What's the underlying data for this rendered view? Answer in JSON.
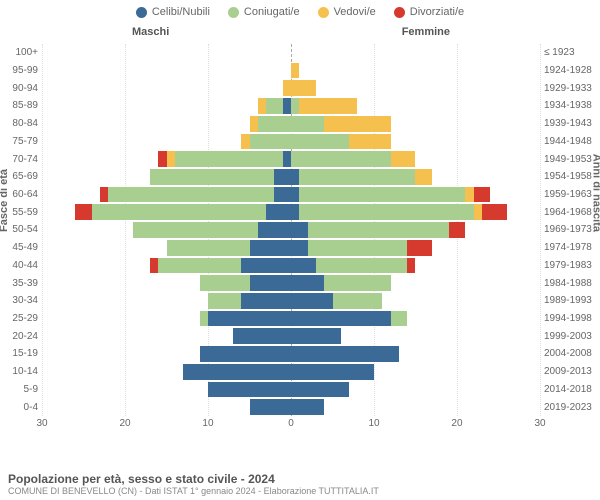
{
  "legend": [
    {
      "label": "Celibi/Nubili",
      "color": "#3b6a96"
    },
    {
      "label": "Coniugati/e",
      "color": "#a8cf8f"
    },
    {
      "label": "Vedovi/e",
      "color": "#f5c04e"
    },
    {
      "label": "Divorziati/e",
      "color": "#d63a2e"
    }
  ],
  "headers": {
    "male": "Maschi",
    "female": "Femmine"
  },
  "yaxis_left": "Fasce di età",
  "yaxis_right": "Anni di nascita",
  "xaxis": {
    "min": -30,
    "max": 30,
    "ticks": [
      30,
      20,
      10,
      0,
      10,
      20,
      30
    ],
    "positions": [
      0,
      16.67,
      33.33,
      50,
      66.67,
      83.33,
      100
    ]
  },
  "title": "Popolazione per età, sesso e stato civile - 2024",
  "subtitle": "COMUNE DI BENEVELLO (CN) - Dati ISTAT 1° gennaio 2024 - Elaborazione TUTTITALIA.IT",
  "background_color": "#ffffff",
  "grid_color": "#dddddd",
  "centerline_color": "#aaaaaa",
  "scale_max": 30,
  "rows": [
    {
      "age": "100+",
      "year": "≤ 1923",
      "m": {
        "c": 0,
        "m": 0,
        "w": 0,
        "d": 0
      },
      "f": {
        "c": 0,
        "m": 0,
        "w": 0,
        "d": 0
      }
    },
    {
      "age": "95-99",
      "year": "1924-1928",
      "m": {
        "c": 0,
        "m": 0,
        "w": 0,
        "d": 0
      },
      "f": {
        "c": 0,
        "m": 0,
        "w": 1,
        "d": 0
      }
    },
    {
      "age": "90-94",
      "year": "1929-1933",
      "m": {
        "c": 0,
        "m": 0,
        "w": 1,
        "d": 0
      },
      "f": {
        "c": 0,
        "m": 0,
        "w": 3,
        "d": 0
      }
    },
    {
      "age": "85-89",
      "year": "1934-1938",
      "m": {
        "c": 1,
        "m": 2,
        "w": 1,
        "d": 0
      },
      "f": {
        "c": 0,
        "m": 1,
        "w": 7,
        "d": 0
      }
    },
    {
      "age": "80-84",
      "year": "1939-1943",
      "m": {
        "c": 0,
        "m": 4,
        "w": 1,
        "d": 0
      },
      "f": {
        "c": 0,
        "m": 4,
        "w": 8,
        "d": 0
      }
    },
    {
      "age": "75-79",
      "year": "1944-1948",
      "m": {
        "c": 0,
        "m": 5,
        "w": 1,
        "d": 0
      },
      "f": {
        "c": 0,
        "m": 7,
        "w": 5,
        "d": 0
      }
    },
    {
      "age": "70-74",
      "year": "1949-1953",
      "m": {
        "c": 1,
        "m": 13,
        "w": 1,
        "d": 1
      },
      "f": {
        "c": 0,
        "m": 12,
        "w": 3,
        "d": 0
      }
    },
    {
      "age": "65-69",
      "year": "1954-1958",
      "m": {
        "c": 2,
        "m": 15,
        "w": 0,
        "d": 0
      },
      "f": {
        "c": 1,
        "m": 14,
        "w": 2,
        "d": 0
      }
    },
    {
      "age": "60-64",
      "year": "1959-1963",
      "m": {
        "c": 2,
        "m": 20,
        "w": 0,
        "d": 1
      },
      "f": {
        "c": 1,
        "m": 20,
        "w": 1,
        "d": 2
      }
    },
    {
      "age": "55-59",
      "year": "1964-1968",
      "m": {
        "c": 3,
        "m": 21,
        "w": 0,
        "d": 2
      },
      "f": {
        "c": 1,
        "m": 21,
        "w": 1,
        "d": 3
      }
    },
    {
      "age": "50-54",
      "year": "1969-1973",
      "m": {
        "c": 4,
        "m": 15,
        "w": 0,
        "d": 0
      },
      "f": {
        "c": 2,
        "m": 17,
        "w": 0,
        "d": 2
      }
    },
    {
      "age": "45-49",
      "year": "1974-1978",
      "m": {
        "c": 5,
        "m": 10,
        "w": 0,
        "d": 0
      },
      "f": {
        "c": 2,
        "m": 12,
        "w": 0,
        "d": 3
      }
    },
    {
      "age": "40-44",
      "year": "1979-1983",
      "m": {
        "c": 6,
        "m": 10,
        "w": 0,
        "d": 1
      },
      "f": {
        "c": 3,
        "m": 11,
        "w": 0,
        "d": 1
      }
    },
    {
      "age": "35-39",
      "year": "1984-1988",
      "m": {
        "c": 5,
        "m": 6,
        "w": 0,
        "d": 0
      },
      "f": {
        "c": 4,
        "m": 8,
        "w": 0,
        "d": 0
      }
    },
    {
      "age": "30-34",
      "year": "1989-1993",
      "m": {
        "c": 6,
        "m": 4,
        "w": 0,
        "d": 0
      },
      "f": {
        "c": 5,
        "m": 6,
        "w": 0,
        "d": 0
      }
    },
    {
      "age": "25-29",
      "year": "1994-1998",
      "m": {
        "c": 10,
        "m": 1,
        "w": 0,
        "d": 0
      },
      "f": {
        "c": 12,
        "m": 2,
        "w": 0,
        "d": 0
      }
    },
    {
      "age": "20-24",
      "year": "1999-2003",
      "m": {
        "c": 7,
        "m": 0,
        "w": 0,
        "d": 0
      },
      "f": {
        "c": 6,
        "m": 0,
        "w": 0,
        "d": 0
      }
    },
    {
      "age": "15-19",
      "year": "2004-2008",
      "m": {
        "c": 11,
        "m": 0,
        "w": 0,
        "d": 0
      },
      "f": {
        "c": 13,
        "m": 0,
        "w": 0,
        "d": 0
      }
    },
    {
      "age": "10-14",
      "year": "2009-2013",
      "m": {
        "c": 13,
        "m": 0,
        "w": 0,
        "d": 0
      },
      "f": {
        "c": 10,
        "m": 0,
        "w": 0,
        "d": 0
      }
    },
    {
      "age": "5-9",
      "year": "2014-2018",
      "m": {
        "c": 10,
        "m": 0,
        "w": 0,
        "d": 0
      },
      "f": {
        "c": 7,
        "m": 0,
        "w": 0,
        "d": 0
      }
    },
    {
      "age": "0-4",
      "year": "2019-2023",
      "m": {
        "c": 5,
        "m": 0,
        "w": 0,
        "d": 0
      },
      "f": {
        "c": 4,
        "m": 0,
        "w": 0,
        "d": 0
      }
    }
  ]
}
